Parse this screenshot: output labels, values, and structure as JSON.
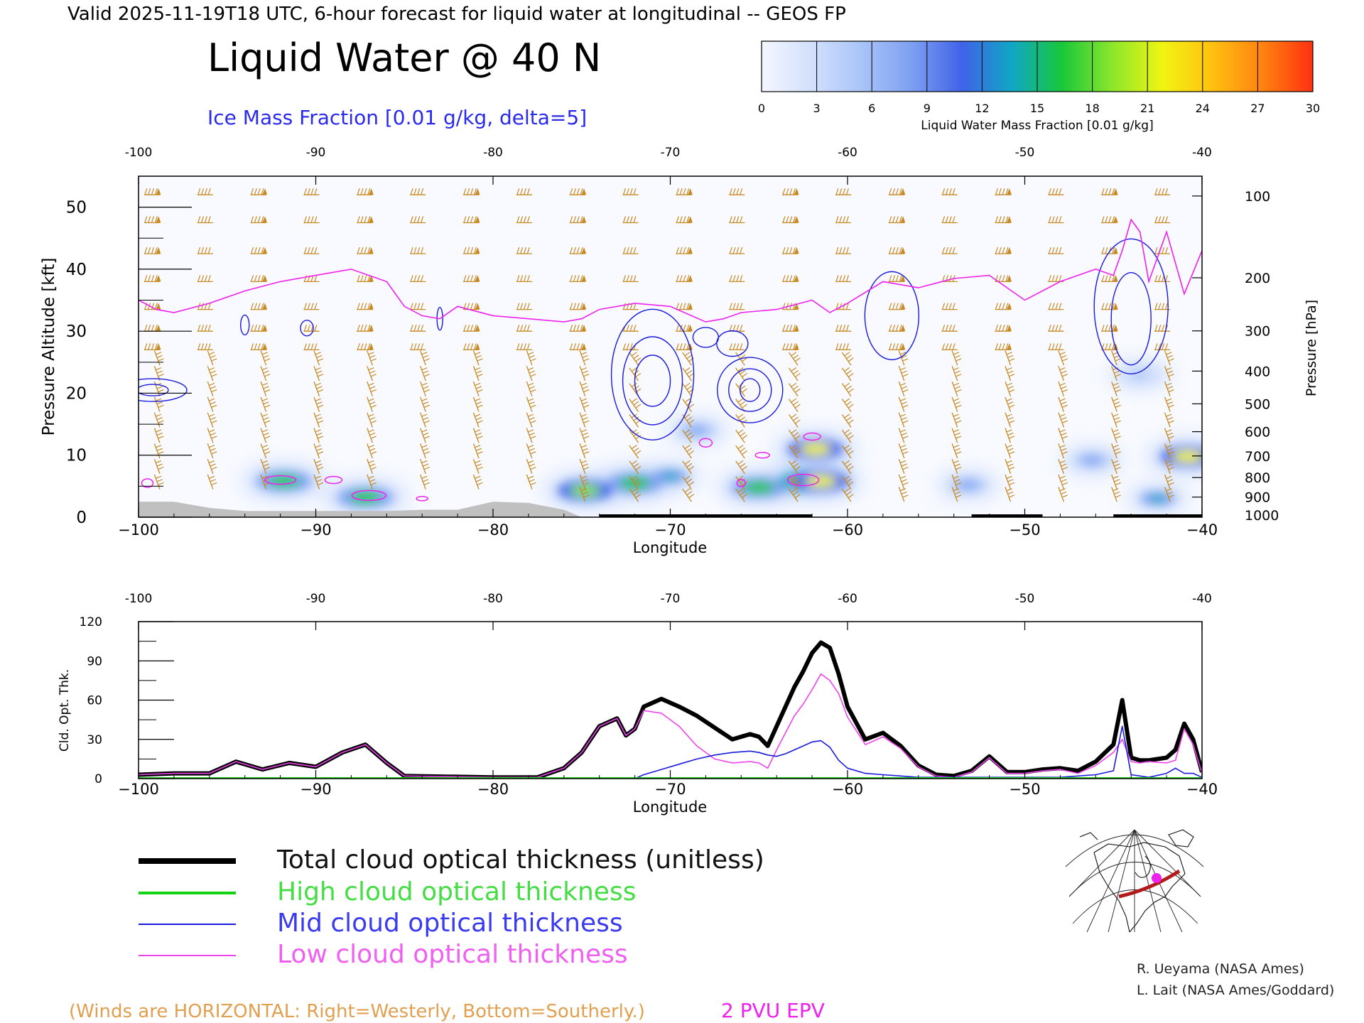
{
  "header": {
    "top_line": "Valid 2025-11-19T18 UTC, 6-hour forecast for liquid water at longitudinal -- GEOS FP",
    "main_title": "Liquid Water @ 40 N",
    "contour_label": "Ice Mass Fraction [0.01 g/kg, delta=5]"
  },
  "colorbar": {
    "label": "Liquid Water Mass Fraction [0.01 g/kg]",
    "ticks": [
      "0",
      "3",
      "6",
      "9",
      "12",
      "15",
      "18",
      "21",
      "24",
      "27",
      "30"
    ],
    "colors": [
      "#f4f7ff",
      "#d2e0fc",
      "#a9c4f8",
      "#7d9ff1",
      "#3f63e8",
      "#10a7c4",
      "#18c83a",
      "#8be62c",
      "#f1f512",
      "#ffc010",
      "#ff8210",
      "#ff3010"
    ]
  },
  "colors": {
    "ice_contour": "#1a1adc",
    "epv": "#ee22ee",
    "wind": "#c88a22",
    "total": "#000000",
    "high": "#13d313",
    "mid": "#1a1adc",
    "low": "#ee44ee",
    "terrain": "#c0c0c0",
    "credits_text": "#222222"
  },
  "top_panel": {
    "x_top_ticks": [
      "-100",
      "-90",
      "-80",
      "-70",
      "-60",
      "-50",
      "-40"
    ],
    "x_bottom_ticks": [
      "−100",
      "−90",
      "−80",
      "−70",
      "−60",
      "−50",
      "−40"
    ],
    "xlabel": "Longitude",
    "ylabel_left": "Pressure Altitude [kft]",
    "y_left_ticks": [
      "0",
      "10",
      "20",
      "30",
      "40",
      "50"
    ],
    "ylabel_right": "Pressure [hPa]",
    "y_right_ticks": [
      "100",
      "200",
      "300",
      "400",
      "500",
      "600",
      "700",
      "800",
      "900",
      "1000"
    ]
  },
  "bottom_panel": {
    "x_top_ticks": [
      "-100",
      "-90",
      "-80",
      "-70",
      "-60",
      "-50",
      "-40"
    ],
    "x_bottom_ticks": [
      "−100",
      "−90",
      "−80",
      "−70",
      "−60",
      "−50",
      "−40"
    ],
    "xlabel": "Longitude",
    "ylabel": "Cld. Opt. Thk.",
    "y_ticks": [
      "0",
      "30",
      "60",
      "90",
      "120"
    ]
  },
  "legend": {
    "total": "Total cloud optical thickness (unitless)",
    "high": "High cloud optical thickness",
    "mid": "Mid cloud optical thickness",
    "low": "Low cloud optical thickness"
  },
  "footer": {
    "winds_note": "(Winds are HORIZONTAL: Right=Westerly, Bottom=Southerly.)",
    "epv_label": "2 PVU EPV",
    "credit_1": "R. Ueyama (NASA Ames)",
    "credit_2": "L. Lait (NASA Ames/Goddard)"
  },
  "chart_data": [
    {
      "type": "heatmap",
      "title": "Liquid Water @ 40 N",
      "xlabel": "Longitude",
      "ylabel": "Pressure Altitude [kft]",
      "xlim": [
        -100,
        -40
      ],
      "ylim": [
        0,
        55
      ],
      "liquid_water_blobs": [
        {
          "lon": -91.8,
          "kft": 5.8,
          "value": 17
        },
        {
          "lon": -87.2,
          "kft": 3.2,
          "value": 17
        },
        {
          "lon": -74.8,
          "kft": 4.3,
          "value": 18
        },
        {
          "lon": -72.0,
          "kft": 5.5,
          "value": 16
        },
        {
          "lon": -70.0,
          "kft": 6.6,
          "value": 14
        },
        {
          "lon": -68.5,
          "kft": 14.0,
          "value": 8
        },
        {
          "lon": -65.0,
          "kft": 4.8,
          "value": 16
        },
        {
          "lon": -62.3,
          "kft": 5.8,
          "value": 27
        },
        {
          "lon": -61.8,
          "kft": 11.0,
          "value": 22
        },
        {
          "lon": -61.5,
          "kft": 5.8,
          "value": 21
        },
        {
          "lon": -53.2,
          "kft": 5.2,
          "value": 9
        },
        {
          "lon": -46.2,
          "kft": 9.2,
          "value": 8
        },
        {
          "lon": -42.5,
          "kft": 3.0,
          "value": 13
        },
        {
          "lon": -40.8,
          "kft": 9.8,
          "value": 22
        },
        {
          "lon": -43.5,
          "kft": 23.0,
          "value": 5
        }
      ],
      "epv_2pvu_kft": {
        "lon": [
          -100,
          -99,
          -98,
          -96,
          -94,
          -92,
          -90,
          -88,
          -86,
          -85,
          -84,
          -83,
          -82,
          -80,
          -78,
          -76,
          -75,
          -74,
          -72,
          -70,
          -68,
          -67,
          -66,
          -64,
          -62,
          -61,
          -60,
          -58,
          -56,
          -54,
          -52,
          -50,
          -48,
          -46,
          -45,
          -44.5,
          -44,
          -43.5,
          -43,
          -42,
          -41,
          -40
        ],
        "kft": [
          35,
          33.5,
          33,
          34.5,
          36.5,
          38,
          39,
          40,
          38,
          34,
          32.5,
          32,
          34,
          32.5,
          32,
          31.5,
          32,
          33.5,
          34.5,
          34,
          31.5,
          32,
          33,
          33.5,
          35,
          33,
          34.5,
          38,
          37,
          38.5,
          39,
          35,
          38,
          40,
          39,
          43,
          48,
          46,
          38,
          46,
          36,
          43
        ]
      },
      "terrain_kft": {
        "lon": [
          -100,
          -98,
          -96,
          -94,
          -92,
          -90,
          -88,
          -86,
          -84,
          -82,
          -80,
          -78,
          -76,
          -75
        ],
        "kft": [
          2.5,
          2.5,
          1.5,
          1.0,
          1.0,
          1.0,
          1.0,
          1.0,
          1.2,
          1.2,
          2.5,
          2.3,
          1.2,
          0
        ]
      }
    },
    {
      "type": "line",
      "xlabel": "Longitude",
      "ylabel": "Cld. Opt. Thk.",
      "xlim": [
        -100,
        -40
      ],
      "ylim": [
        0,
        120
      ],
      "x": [
        -100,
        -98,
        -96,
        -94.5,
        -93,
        -91.5,
        -90,
        -88.5,
        -87.2,
        -86,
        -85,
        -80,
        -77.5,
        -76,
        -75,
        -74,
        -73,
        -72.5,
        -72,
        -71.5,
        -70.5,
        -69.5,
        -68.5,
        -67.5,
        -66.5,
        -65.5,
        -65,
        -64.5,
        -64,
        -63.5,
        -63,
        -62.5,
        -62,
        -61.5,
        -61,
        -60.5,
        -60,
        -59,
        -58,
        -57,
        -56,
        -55,
        -54,
        -53,
        -52,
        -51,
        -50,
        -49,
        -48,
        -47,
        -46,
        -45,
        -44.5,
        -44,
        -43.5,
        -43,
        -42,
        -41.5,
        -41,
        -40.5,
        -40
      ],
      "series": [
        {
          "name": "Total cloud optical thickness (unitless)",
          "values": [
            3,
            4,
            4,
            13,
            7,
            12,
            9,
            20,
            26,
            12,
            2,
            1,
            1,
            8,
            20,
            40,
            46,
            33,
            38,
            55,
            61,
            55,
            48,
            39,
            30,
            34,
            32,
            25,
            40,
            55,
            70,
            82,
            96,
            104,
            100,
            80,
            55,
            30,
            35,
            25,
            10,
            3,
            2,
            6,
            17,
            5,
            5,
            7,
            8,
            6,
            13,
            26,
            60,
            16,
            14,
            14,
            16,
            22,
            42,
            30,
            5
          ]
        },
        {
          "name": "High cloud optical thickness",
          "values": [
            0,
            0,
            0,
            0,
            0,
            0,
            0,
            0,
            0,
            0,
            0,
            0,
            0,
            0,
            0,
            0,
            0,
            0,
            0,
            0,
            0,
            0,
            0,
            0,
            0,
            0,
            0,
            0,
            0,
            0,
            0,
            0,
            0,
            0,
            0,
            0,
            0,
            0,
            0,
            0,
            0,
            0,
            0,
            0,
            0,
            0,
            0,
            0,
            0,
            0,
            0,
            0,
            0,
            0,
            0,
            0,
            0,
            0,
            0,
            0,
            0
          ]
        },
        {
          "name": "Mid cloud optical thickness",
          "values": [
            0,
            0,
            0,
            0,
            0,
            0,
            0,
            0,
            0,
            0,
            0,
            0,
            0,
            0,
            0,
            0,
            0,
            0,
            0,
            3,
            7,
            11,
            15,
            18,
            20,
            21,
            20,
            18,
            17,
            19,
            22,
            25,
            28,
            29,
            24,
            14,
            8,
            4,
            3,
            2,
            1,
            1,
            1,
            1,
            1,
            1,
            1,
            1,
            1,
            2,
            3,
            6,
            40,
            3,
            2,
            1,
            4,
            8,
            4,
            4,
            1
          ]
        },
        {
          "name": "Low cloud optical thickness",
          "values": [
            3,
            4,
            4,
            13,
            7,
            12,
            9,
            20,
            26,
            12,
            2,
            1,
            1,
            8,
            20,
            40,
            46,
            33,
            38,
            52,
            50,
            40,
            25,
            15,
            12,
            13,
            12,
            8,
            22,
            35,
            48,
            57,
            68,
            80,
            75,
            65,
            47,
            26,
            32,
            23,
            9,
            2,
            1,
            5,
            16,
            4,
            4,
            6,
            7,
            4,
            10,
            20,
            30,
            13,
            12,
            13,
            12,
            14,
            38,
            26,
            4
          ]
        }
      ]
    }
  ]
}
